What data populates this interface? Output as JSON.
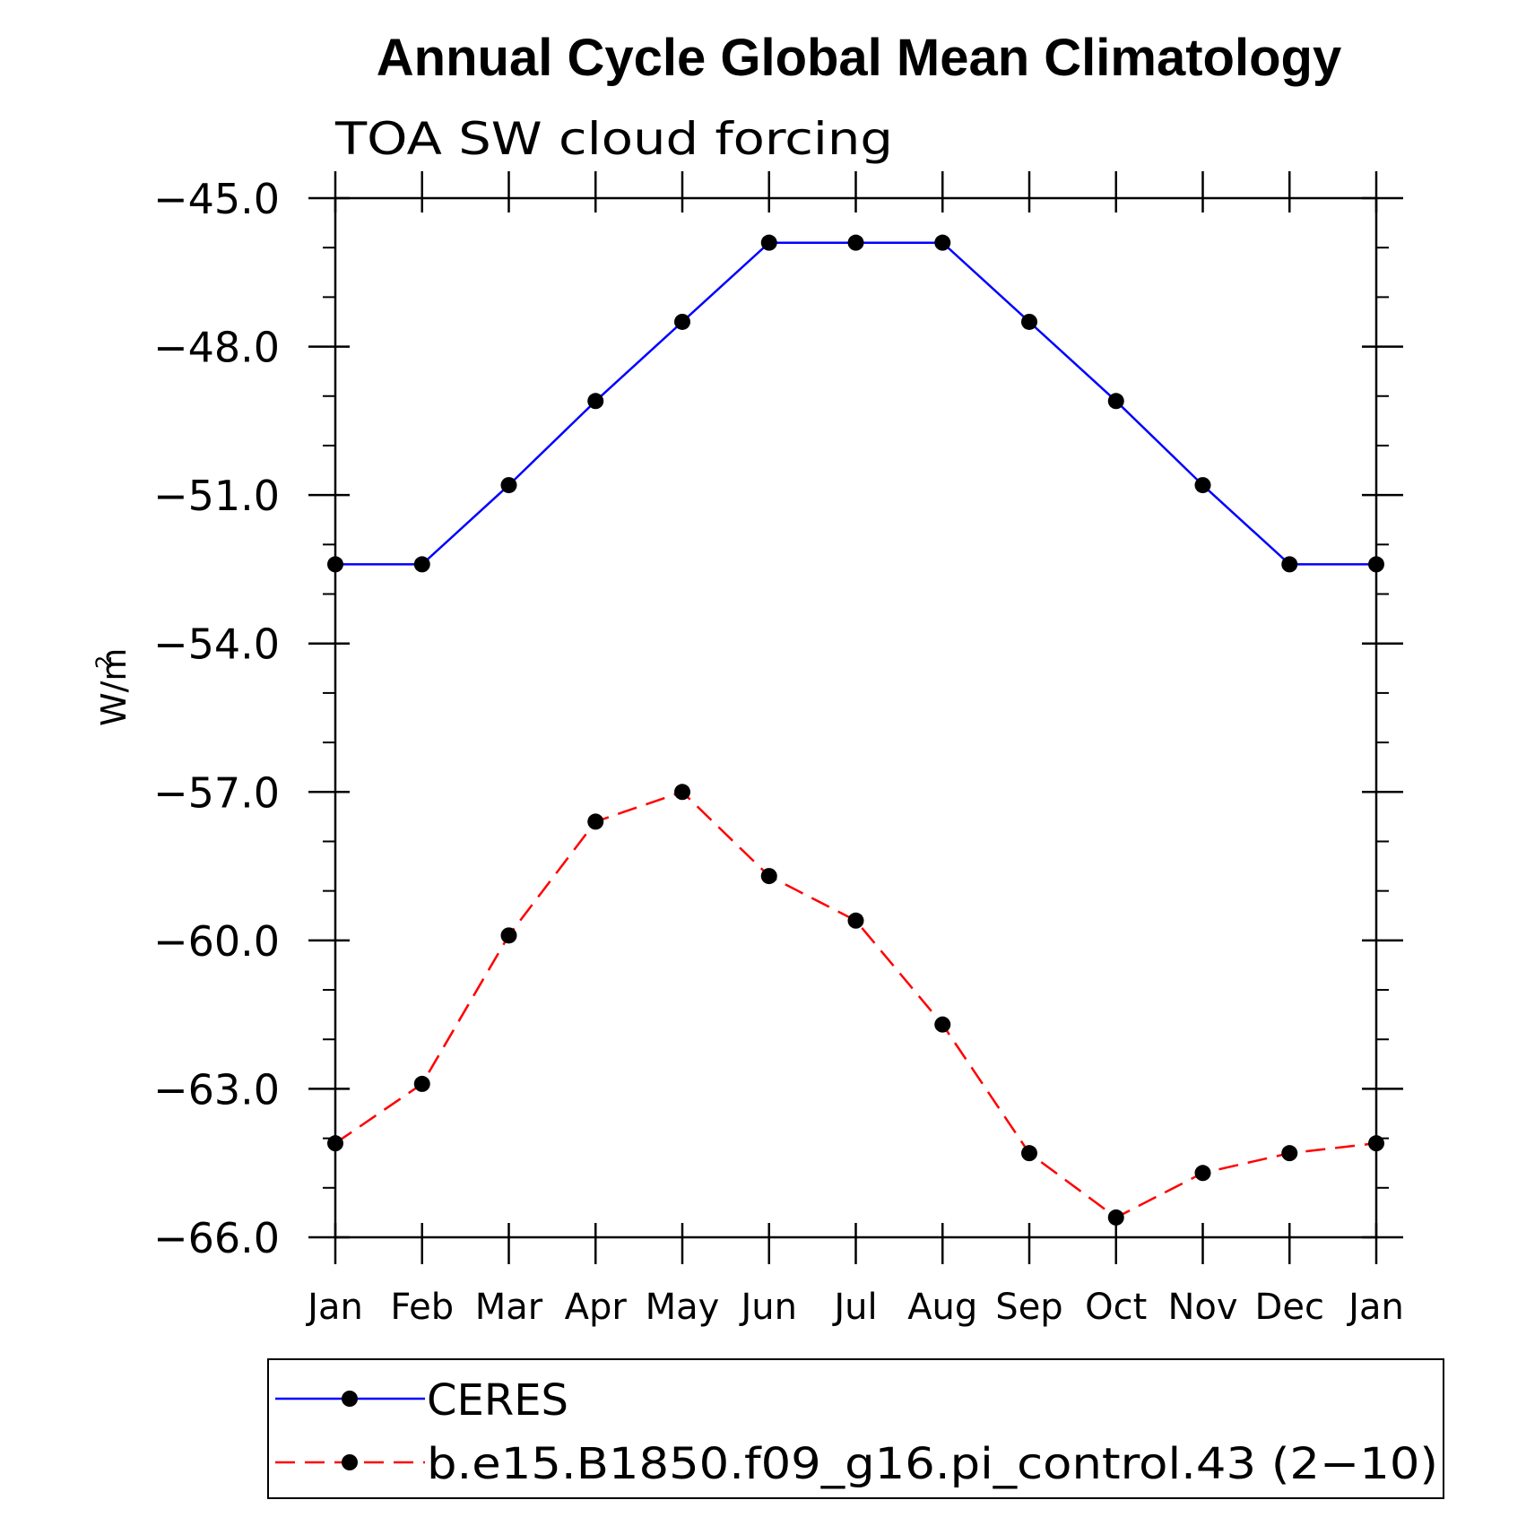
{
  "chart_data": {
    "type": "line",
    "title": "Annual Cycle Global Mean Climatology",
    "subtitle": "TOA SW cloud forcing",
    "ylabel": "W/m",
    "ylabel_sup": "2",
    "xlabel": "",
    "ylim": [
      -66.0,
      -45.0
    ],
    "yticks": [
      -45.0,
      -48.0,
      -51.0,
      -54.0,
      -57.0,
      -60.0,
      -63.0,
      -66.0
    ],
    "ytick_labels": [
      "−45.0",
      "−48.0",
      "−51.0",
      "−54.0",
      "−57.0",
      "−60.0",
      "−63.0",
      "−66.0"
    ],
    "categories": [
      "Jan",
      "Feb",
      "Mar",
      "Apr",
      "May",
      "Jun",
      "Jul",
      "Aug",
      "Sep",
      "Oct",
      "Nov",
      "Dec",
      "Jan"
    ],
    "grid": false,
    "legend_position": "bottom",
    "series": [
      {
        "name": "CERES",
        "color": "#0000ff",
        "dash": "solid",
        "marker": "filled-circle",
        "values": [
          -52.4,
          -52.4,
          -50.8,
          -49.1,
          -47.5,
          -45.9,
          -45.9,
          -45.9,
          -47.5,
          -49.1,
          -50.8,
          -52.4,
          -52.4
        ]
      },
      {
        "name": "b.e15.B1850.f09_g16.pi_control.43 (2−10)",
        "color": "#ff0000",
        "dash": "dashed",
        "marker": "filled-circle",
        "values": [
          -64.1,
          -62.9,
          -59.9,
          -57.6,
          -57.0,
          -58.7,
          -59.6,
          -61.7,
          -64.3,
          -65.6,
          -64.7,
          -64.3,
          -64.1
        ]
      }
    ]
  }
}
